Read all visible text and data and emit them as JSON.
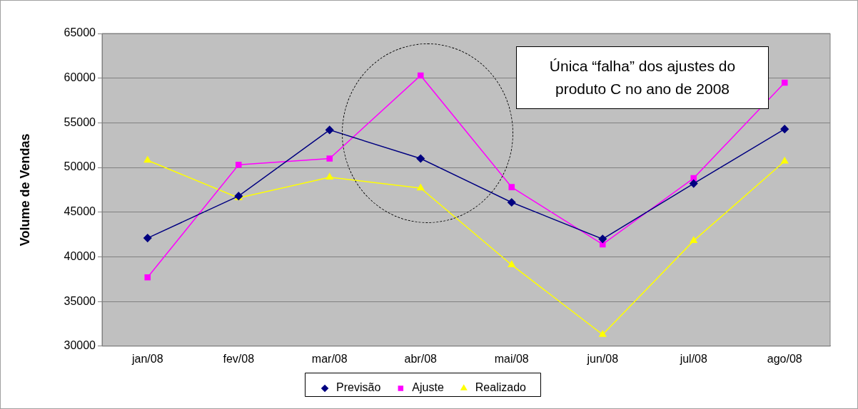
{
  "chart_data": {
    "type": "line",
    "ylabel": "Volume de Vendas",
    "categories": [
      "jan/08",
      "fev/08",
      "mar/08",
      "abr/08",
      "mai/08",
      "jun/08",
      "jul/08",
      "ago/08"
    ],
    "series": [
      {
        "name": "Previsão",
        "color": "#000080",
        "marker": "diamond",
        "values": [
          42100,
          46800,
          54200,
          51000,
          46100,
          42000,
          48200,
          54300
        ]
      },
      {
        "name": "Ajuste",
        "color": "#ff00ff",
        "marker": "square",
        "values": [
          37700,
          50300,
          51000,
          60300,
          47800,
          41400,
          48800,
          59500
        ]
      },
      {
        "name": "Realizado",
        "color": "#ffff00",
        "marker": "triangle",
        "values": [
          50800,
          46600,
          48900,
          47700,
          39100,
          31300,
          41800,
          50700
        ]
      }
    ],
    "ylim": [
      30000,
      65000
    ],
    "yticks": [
      30000,
      35000,
      40000,
      45000,
      50000,
      55000,
      60000,
      65000
    ],
    "grid": "y",
    "legend": "bottom",
    "line_style": "solid",
    "annotations": [
      "Única “falha” dos ajustes do produto C no ano de 2008"
    ]
  }
}
